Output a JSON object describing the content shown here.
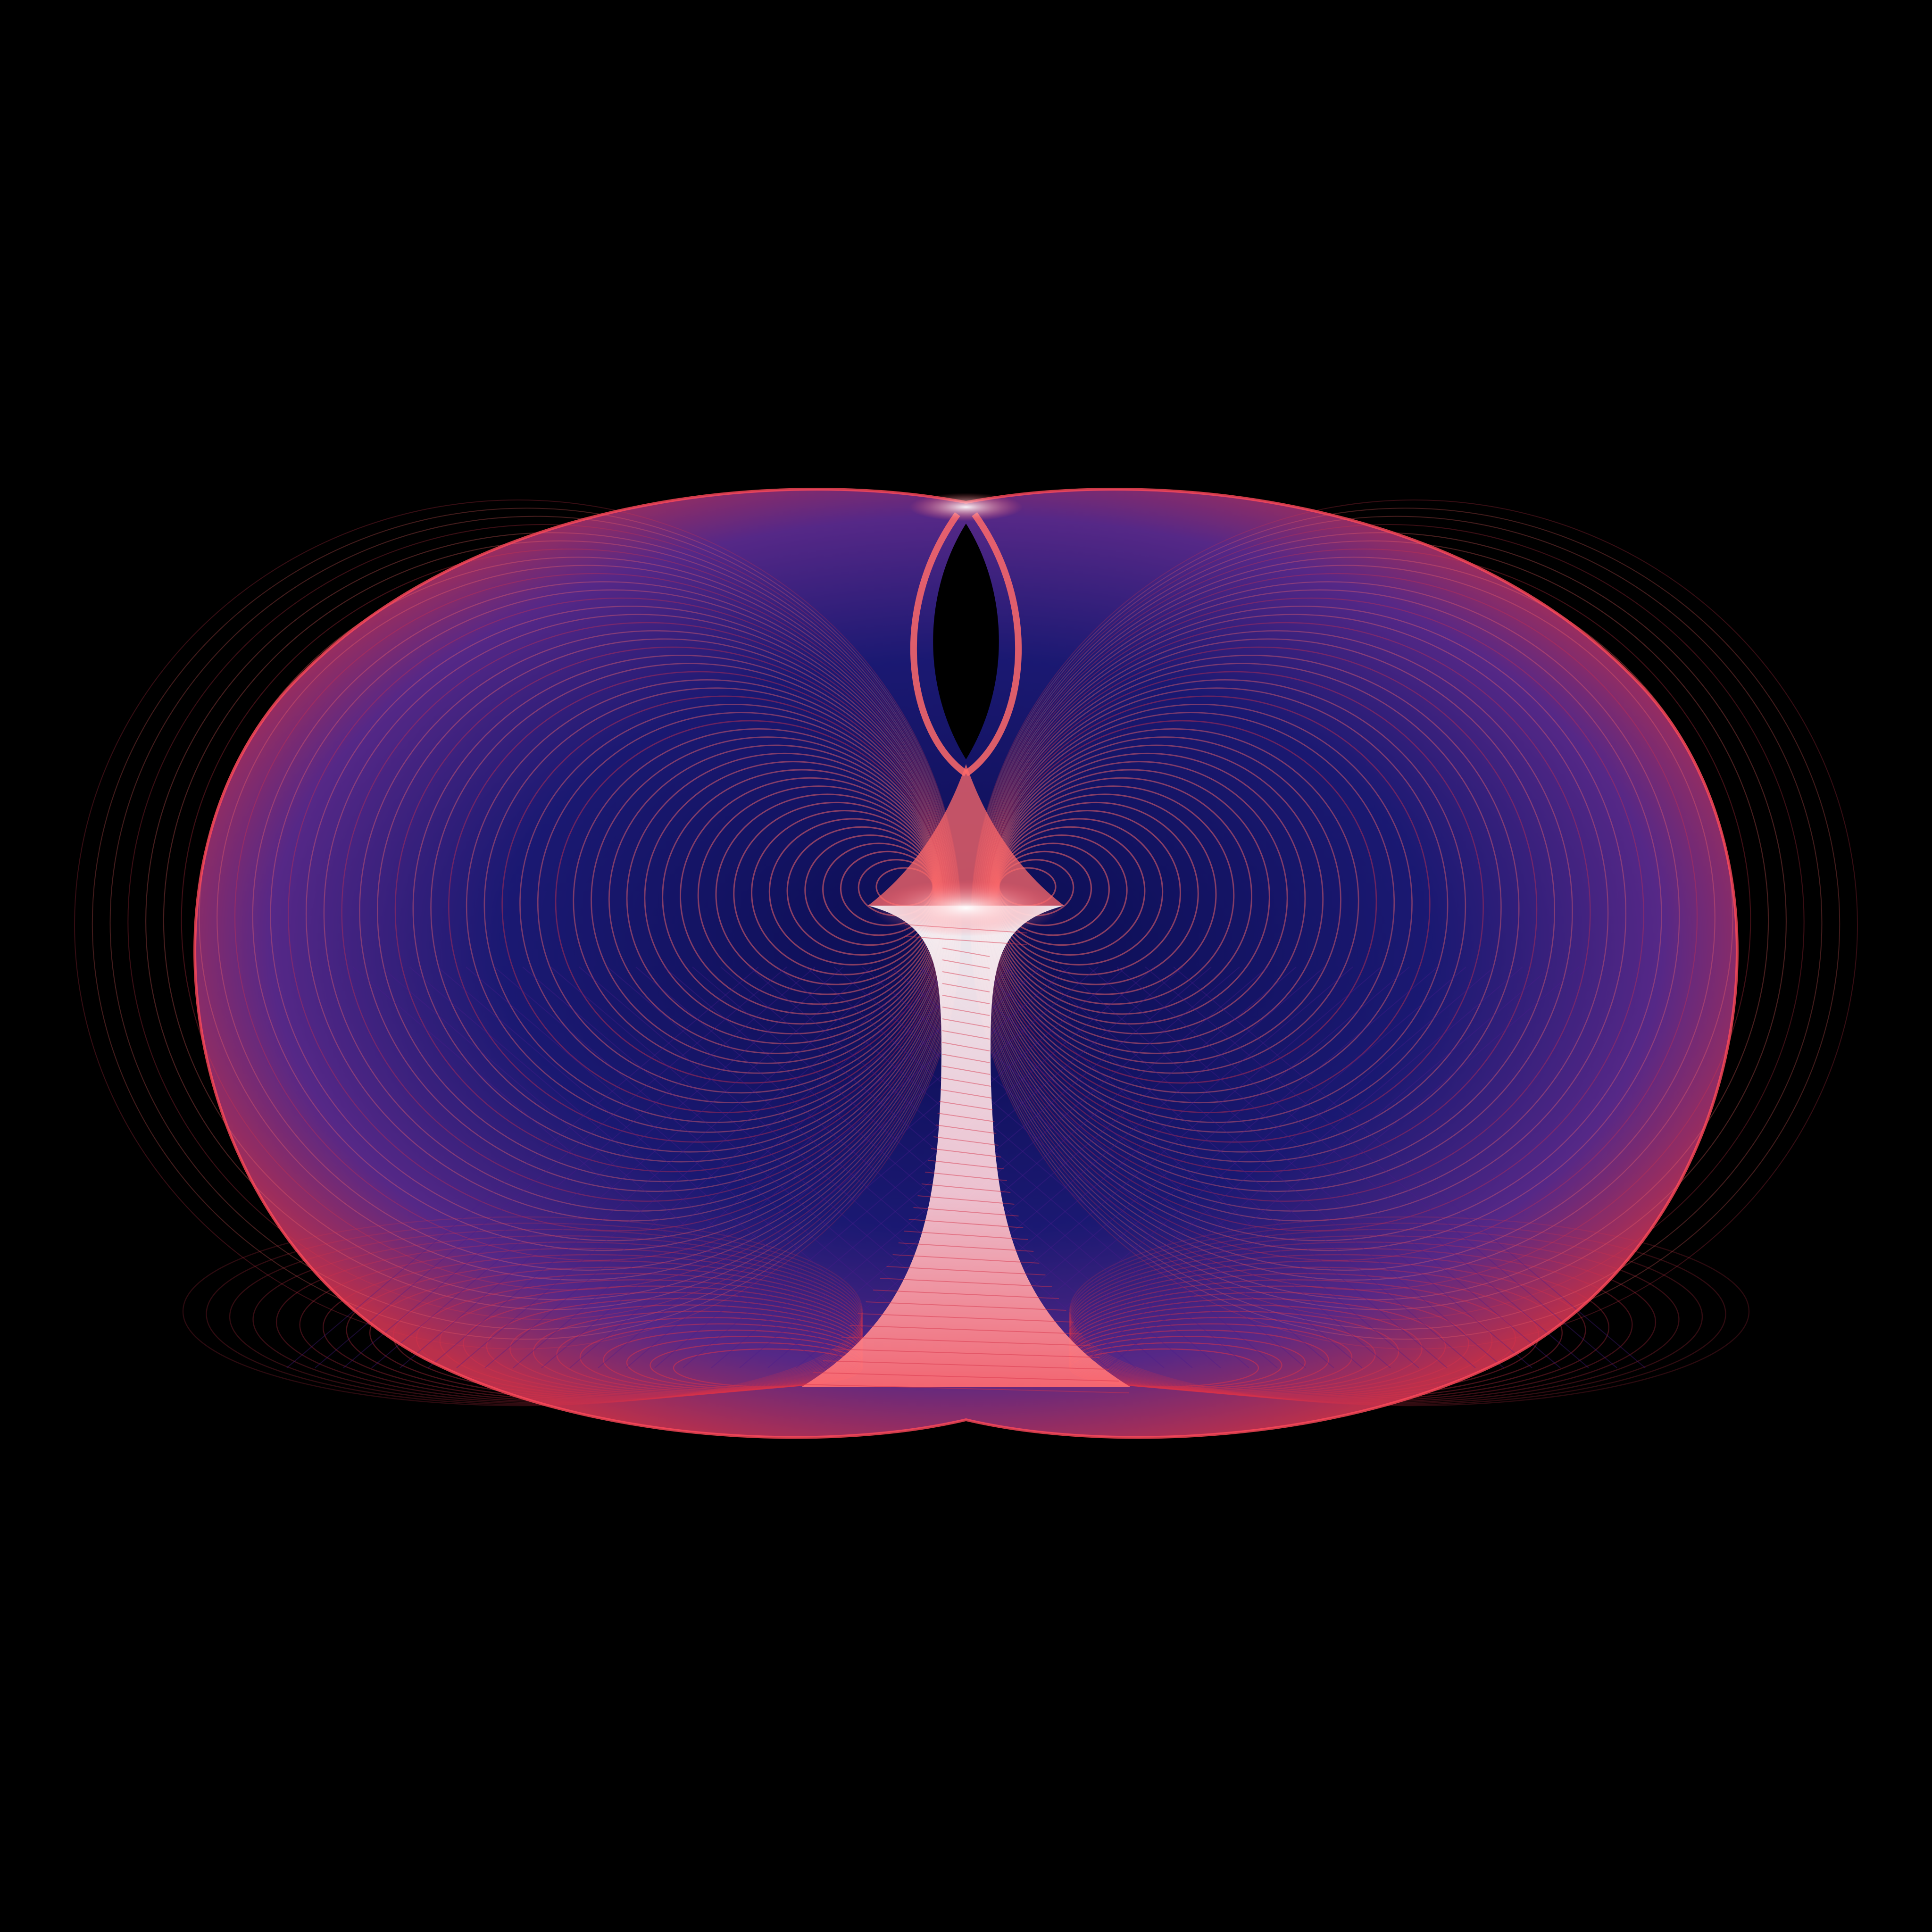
{
  "image": {
    "background": "#000000",
    "palette": {
      "deep": "#0a0f5c",
      "mid": "#4a1e8c",
      "warm": "#d8324a",
      "hot": "#ff6a6a",
      "core": "#ffe8ee"
    },
    "subject": "toroidal-attractor-field",
    "symmetry": "bilateral"
  }
}
